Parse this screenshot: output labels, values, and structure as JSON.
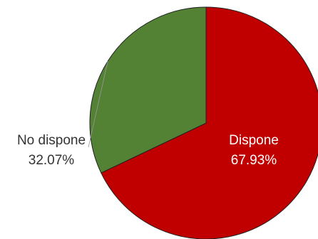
{
  "chart_data": {
    "type": "pie",
    "title": "",
    "slices": [
      {
        "label": "Dispone",
        "value": 67.93,
        "value_label": "67.93%",
        "color": "#c00000",
        "label_color": "#ffffff",
        "label_placement": "inside"
      },
      {
        "label": "No dispone",
        "value": 32.07,
        "value_label": "32.07%",
        "color": "#548235",
        "label_color": "#333333",
        "label_placement": "outside"
      }
    ],
    "start_angle_deg": 0,
    "direction": "clockwise",
    "legend": "none",
    "outline_color": "#222222"
  }
}
